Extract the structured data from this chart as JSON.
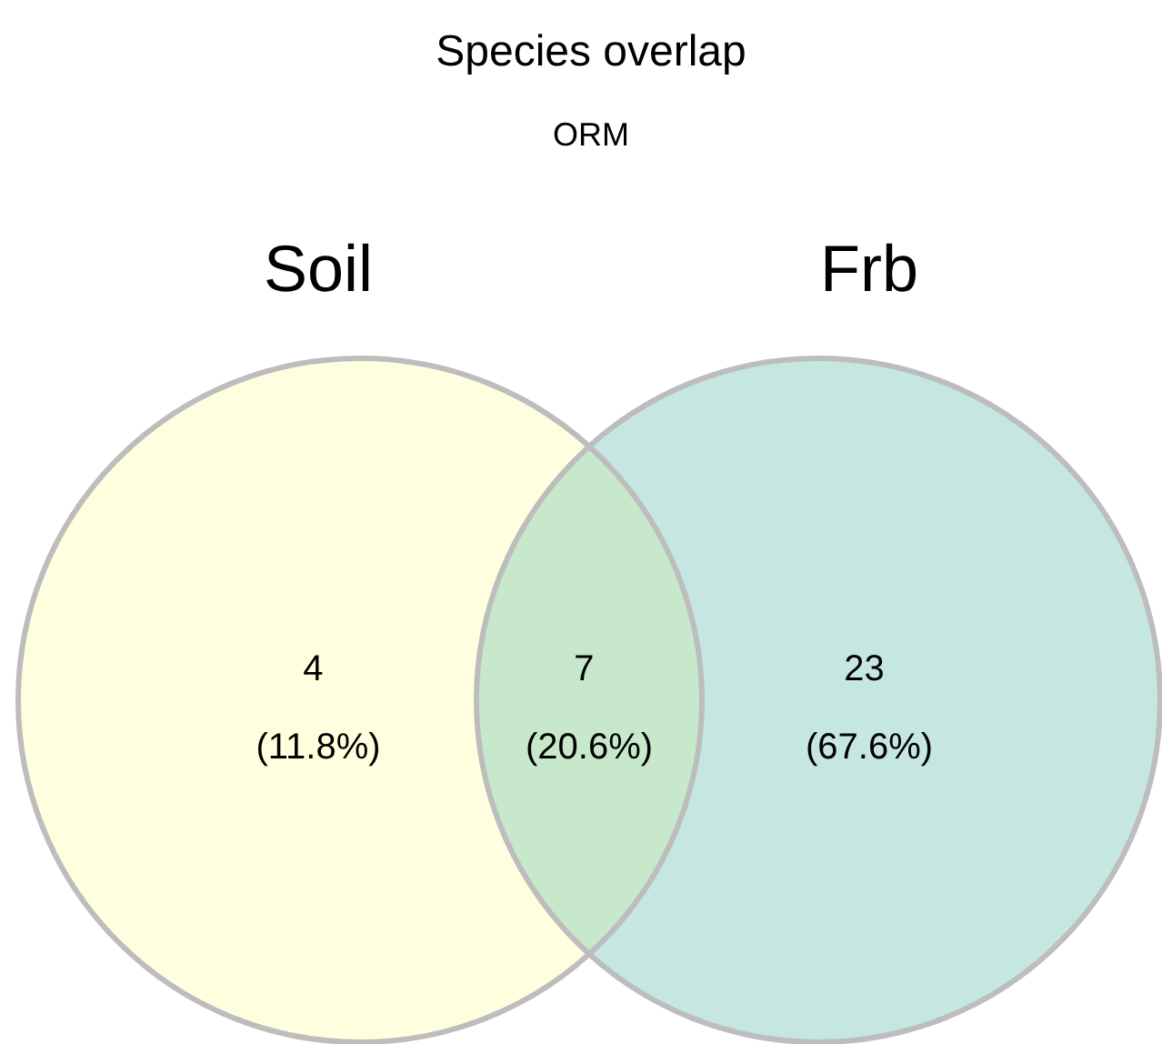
{
  "chart_data": {
    "type": "other",
    "title": "Species overlap",
    "subtitle": "ORM",
    "categories": [
      "Soil",
      null,
      "Frb"
    ],
    "values": [
      4,
      7,
      23
    ],
    "value_labels": [
      "4 (11.8%)",
      "7 (20.6%)",
      "23 (67.6%)"
    ],
    "colors": [
      "#ffffe0",
      "#c8e8cc",
      "#c5e6e1"
    ]
  }
}
